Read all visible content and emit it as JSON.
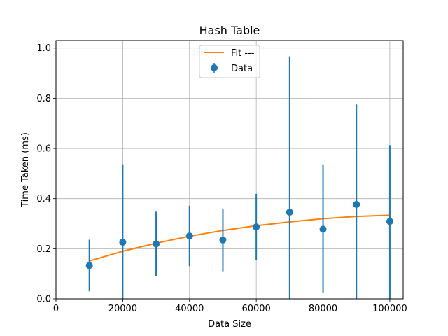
{
  "chart_data": {
    "type": "scatter",
    "title": "Hash Table",
    "xlabel": "Data Size",
    "ylabel": "Time Taken (ms)",
    "xlim": [
      0,
      104000
    ],
    "ylim": [
      0,
      1.03
    ],
    "grid": true,
    "legend_position": "top-center",
    "x_ticks": [
      0,
      20000,
      40000,
      60000,
      80000,
      100000
    ],
    "x_tick_labels": [
      "0",
      "20000",
      "40000",
      "60000",
      "80000",
      "100000"
    ],
    "y_ticks": [
      0,
      0.2,
      0.4,
      0.6,
      0.8,
      1.0
    ],
    "y_tick_labels": [
      "0.0",
      "0.2",
      "0.4",
      "0.6",
      "0.8",
      "1.0"
    ],
    "series": [
      {
        "name": "Data",
        "kind": "errorbar",
        "color": "#1f77b4",
        "x": [
          10000,
          20000,
          30000,
          40000,
          50000,
          60000,
          70000,
          80000,
          90000,
          100000
        ],
        "y": [
          0.133,
          0.226,
          0.219,
          0.251,
          0.235,
          0.287,
          0.346,
          0.278,
          0.377,
          0.309
        ],
        "err_low": [
          0.103,
          0.226,
          0.129,
          0.121,
          0.125,
          0.132,
          0.346,
          0.254,
          0.377,
          0.309
        ],
        "err_high": [
          0.103,
          0.311,
          0.129,
          0.121,
          0.125,
          0.132,
          0.621,
          0.259,
          0.398,
          0.304
        ]
      },
      {
        "name": "Fit ---",
        "kind": "line",
        "color": "#ff7f0e",
        "x": [
          10000,
          20000,
          30000,
          40000,
          50000,
          60000,
          70000,
          80000,
          90000,
          100000
        ],
        "y": [
          0.151,
          0.19,
          0.222,
          0.25,
          0.273,
          0.292,
          0.307,
          0.32,
          0.329,
          0.334
        ]
      }
    ]
  }
}
